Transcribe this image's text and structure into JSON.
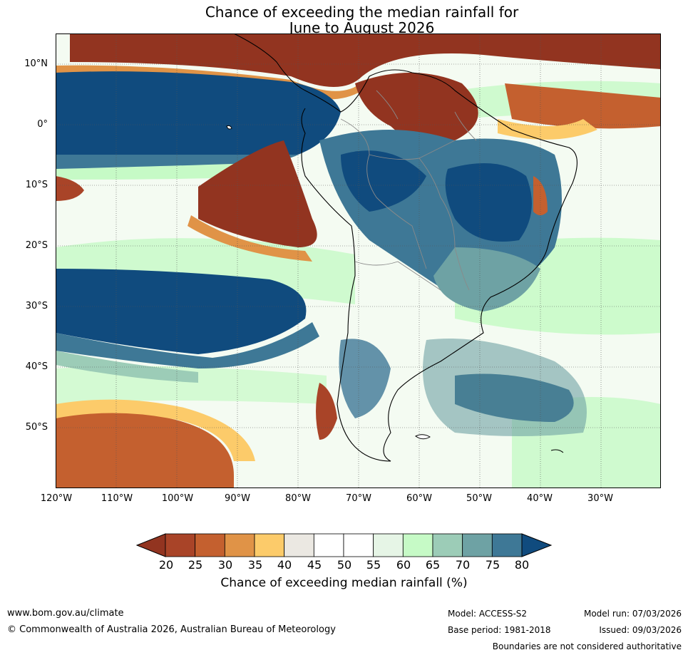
{
  "title": {
    "line1": "Chance of exceeding the median rainfall for",
    "line2": "June to August 2026"
  },
  "map": {
    "lat_labels": [
      "10°N",
      "0°",
      "10°S",
      "20°S",
      "30°S",
      "40°S",
      "50°S"
    ],
    "lon_labels": [
      "120°W",
      "110°W",
      "100°W",
      "90°W",
      "80°W",
      "70°W",
      "60°W",
      "50°W",
      "40°W",
      "30°W"
    ],
    "lon_range": [
      -120,
      -20
    ],
    "lat_range": [
      -60,
      15
    ]
  },
  "colorbar": {
    "ticks": [
      "20",
      "25",
      "30",
      "35",
      "40",
      "45",
      "50",
      "55",
      "60",
      "65",
      "70",
      "75",
      "80"
    ],
    "colors": [
      "#a94428",
      "#c4602f",
      "#e09347",
      "#fccb6a",
      "#ebe8e2",
      "#ffffff",
      "#ffffff",
      "#e6f5e6",
      "#c6fac6",
      "#9cccb7",
      "#6ea2a4",
      "#3e7896"
    ],
    "low_color": "#923420",
    "high_color": "#104b7e",
    "label": "Chance of exceeding median rainfall (%)"
  },
  "footer": {
    "website": "www.bom.gov.au/climate",
    "copyright": "© Commonwealth of Australia 2026, Australian Bureau of Meteorology",
    "model": "Model: ACCESS-S2",
    "base_period": "Base period: 1981-2018",
    "model_run": "Model run: 07/03/2026",
    "issued": "Issued: 09/03/2026",
    "disclaimer": "Boundaries are not considered authoritative"
  }
}
